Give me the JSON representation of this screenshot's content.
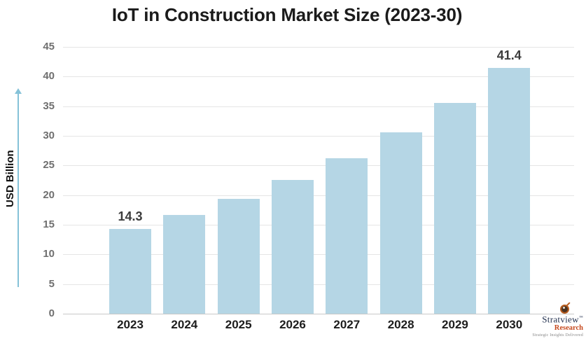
{
  "title": "IoT in Construction Market Size (2023-30)",
  "chart_data": {
    "type": "bar",
    "categories": [
      "2023",
      "2024",
      "2025",
      "2026",
      "2027",
      "2028",
      "2029",
      "2030"
    ],
    "values": [
      14.3,
      16.7,
      19.4,
      22.6,
      26.2,
      30.6,
      35.6,
      41.4
    ],
    "value_labels": [
      "14.3",
      "",
      "",
      "",
      "",
      "",
      "",
      "41.4"
    ],
    "title": "IoT in Construction Market Size (2023-30)",
    "xlabel": "",
    "ylabel": "USD Billion",
    "ylim": [
      0,
      45
    ],
    "ytick_step": 5,
    "grid": true,
    "legend": "none",
    "bar_color": "#b5d6e5"
  },
  "colors": {
    "bar": "#b5d6e5",
    "arrow": "#85c2d8",
    "gridline": "#e5e5e5",
    "title_text": "#1b1b1b",
    "tick_text": "#6f6f6f",
    "logo_navy": "#22304f",
    "logo_orange": "#b75b1d",
    "logo_orange_text": "#c64a1f"
  },
  "logo": {
    "brand": "Stratview",
    "trademark": "™",
    "sub_brand": "Research",
    "tagline": "Strategic Insights Delivered"
  }
}
